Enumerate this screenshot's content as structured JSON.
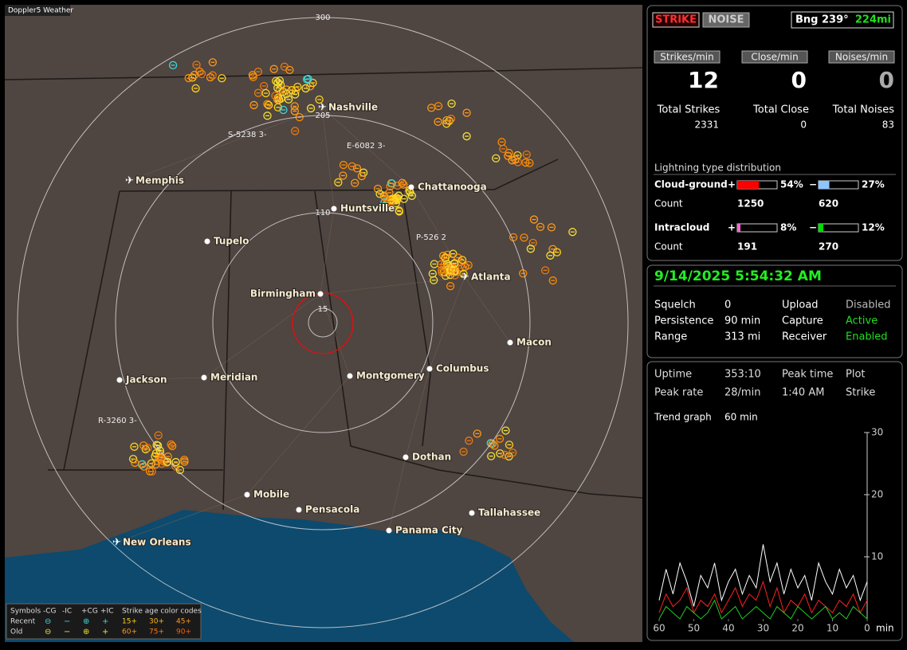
{
  "header": {
    "title": "Doppler5 Weather"
  },
  "map": {
    "range_ring_labels": [
      300,
      205,
      110,
      15
    ],
    "cities": [
      {
        "name": "Nashville",
        "airport": true
      },
      {
        "name": "Memphis",
        "airport": true
      },
      {
        "name": "Chattanooga",
        "airport": false
      },
      {
        "name": "Huntsville",
        "airport": false
      },
      {
        "name": "Tupelo",
        "airport": false
      },
      {
        "name": "Atlanta",
        "airport": true
      },
      {
        "name": "Birmingham",
        "airport": false
      },
      {
        "name": "Macon",
        "airport": false
      },
      {
        "name": "Montgomery",
        "airport": false
      },
      {
        "name": "Columbus",
        "airport": false
      },
      {
        "name": "Jackson",
        "airport": false
      },
      {
        "name": "Meridian",
        "airport": false
      },
      {
        "name": "Dothan",
        "airport": false
      },
      {
        "name": "Mobile",
        "airport": false
      },
      {
        "name": "Pensacola",
        "airport": false
      },
      {
        "name": "Tallahassee",
        "airport": false
      },
      {
        "name": "Panama City",
        "airport": false
      },
      {
        "name": "New Orleans",
        "airport": true
      }
    ],
    "storm_ids": [
      "S-5238 3-",
      "E-6082 3-",
      "P-526 2",
      "R-3260 3-"
    ],
    "legend": {
      "symbols_title": "Symbols",
      "symbol_headers": [
        "-CG",
        "-IC",
        "+CG",
        "+IC"
      ],
      "age_title": "Strike age color codes",
      "rows": [
        {
          "label": "Recent",
          "ages": [
            "15+",
            "30+",
            "45+"
          ]
        },
        {
          "label": "Old",
          "ages": [
            "60+",
            "75+",
            "90+"
          ]
        }
      ]
    }
  },
  "panel": {
    "modes": [
      "STRIKE",
      "NOISE"
    ],
    "bearing": "Bng 239°",
    "distance": "224mi",
    "rates": [
      {
        "label": "Strikes/min",
        "value": 12
      },
      {
        "label": "Close/min",
        "value": 0
      },
      {
        "label": "Noises/min",
        "value": 0
      }
    ],
    "totals": [
      {
        "label": "Total Strikes",
        "value": 2331
      },
      {
        "label": "Total Close",
        "value": 0
      },
      {
        "label": "Total Noises",
        "value": 83
      }
    ],
    "distribution": {
      "title": "Lightning type distribution",
      "rows": [
        {
          "label": "Cloud-ground",
          "count_label": "Count",
          "items": [
            {
              "sign": "+",
              "percent": 54,
              "percent_label": "54%",
              "count": 1250,
              "color": "#ff0000"
            },
            {
              "sign": "−",
              "percent": 27,
              "percent_label": "27%",
              "count": 620,
              "color": "#8ec5ff"
            }
          ]
        },
        {
          "label": "Intracloud",
          "count_label": "Count",
          "items": [
            {
              "sign": "+",
              "percent": 8,
              "percent_label": "8%",
              "count": 191,
              "color": "#ff66cc"
            },
            {
              "sign": "−",
              "percent": 12,
              "percent_label": "12%",
              "count": 270,
              "color": "#00dd00"
            }
          ]
        }
      ]
    },
    "datetime": "9/14/2025 5:54:32 AM",
    "settings": [
      {
        "label": "Squelch",
        "value": 0,
        "color": "#ffffff"
      },
      {
        "label": "Persistence",
        "value": "90 min",
        "color": "#ffffff"
      },
      {
        "label": "Range",
        "value": "313 mi",
        "color": "#ffffff"
      },
      {
        "label": "Upload",
        "value": "Disabled",
        "color": "#bbbbbb"
      },
      {
        "label": "Capture",
        "value": "Active",
        "color": "#22dd22"
      },
      {
        "label": "Receiver",
        "value": "Enabled",
        "color": "#22dd22"
      }
    ],
    "stats": [
      {
        "label": "Uptime",
        "value": "353:10"
      },
      {
        "label": "Peak rate",
        "value": "28/min"
      },
      {
        "label": "Peak time",
        "value": "1:40 AM"
      },
      {
        "label": "Plot",
        "value": "Strike"
      }
    ],
    "trend": {
      "label": "Trend graph",
      "period": "60 min",
      "xlabel": "min",
      "xlim": [
        60,
        0
      ],
      "ylim": [
        0,
        30
      ],
      "xticks": [
        60,
        50,
        40,
        30,
        20,
        10,
        0
      ],
      "yticks": [
        10,
        20,
        30
      ],
      "x": [
        60,
        58,
        56,
        54,
        52,
        50,
        48,
        46,
        44,
        42,
        40,
        38,
        36,
        34,
        32,
        30,
        28,
        26,
        24,
        22,
        20,
        18,
        16,
        14,
        12,
        10,
        8,
        6,
        4,
        2,
        0
      ],
      "series": [
        {
          "color": "#ffffff",
          "values": [
            3,
            8,
            4,
            9,
            6,
            2,
            7,
            5,
            9,
            3,
            6,
            8,
            4,
            7,
            5,
            12,
            6,
            9,
            4,
            8,
            5,
            7,
            3,
            9,
            6,
            4,
            8,
            5,
            7,
            3,
            6
          ]
        },
        {
          "color": "#ff2020",
          "values": [
            1,
            4,
            2,
            3,
            5,
            1,
            3,
            2,
            4,
            1,
            3,
            5,
            2,
            4,
            3,
            6,
            2,
            5,
            1,
            3,
            2,
            4,
            1,
            3,
            2,
            1,
            3,
            2,
            4,
            1,
            3
          ]
        },
        {
          "color": "#22cc22",
          "values": [
            0,
            2,
            1,
            0,
            2,
            1,
            0,
            1,
            3,
            0,
            1,
            2,
            0,
            1,
            2,
            1,
            0,
            2,
            1,
            0,
            2,
            1,
            0,
            1,
            2,
            0,
            1,
            0,
            2,
            1,
            0
          ]
        }
      ]
    }
  }
}
